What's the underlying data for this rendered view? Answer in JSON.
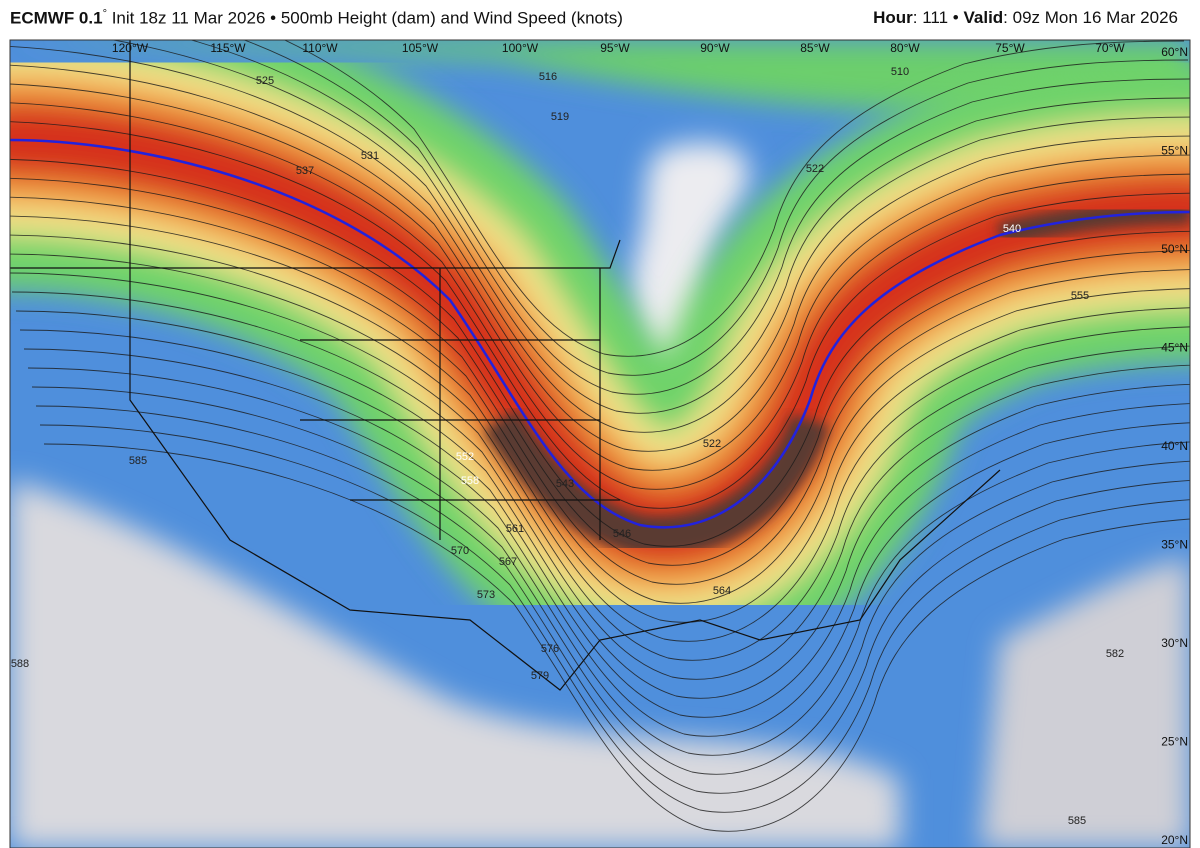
{
  "header": {
    "model": "ECMWF 0.1",
    "degree": "°",
    "description": "Init 18z 11 Mar 2026 • 500mb Height (dam) and Wind Speed (knots)",
    "hour_label": "Hour",
    "hour": ": 111 •",
    "valid_label": "Valid",
    "valid": ": 09z Mon 16 Mar 2026"
  },
  "map": {
    "longitude_labels": [
      "120°W",
      "115°W",
      "110°W",
      "105°W",
      "100°W",
      "95°W",
      "90°W",
      "85°W",
      "80°W",
      "75°W",
      "70°W"
    ],
    "latitude_labels": [
      "60°N",
      "55°N",
      "50°N",
      "45°N",
      "40°N",
      "35°N",
      "30°N",
      "25°N",
      "20°N"
    ],
    "contour_labels": [
      "525",
      "531",
      "537",
      "516",
      "519",
      "510",
      "522",
      "540",
      "555",
      "552",
      "558",
      "543",
      "546",
      "561",
      "567",
      "570",
      "573",
      "564",
      "576",
      "579",
      "585",
      "588",
      "582",
      "522",
      "585"
    ]
  }
}
